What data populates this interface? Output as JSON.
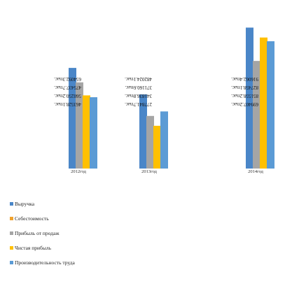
{
  "chart_data": {
    "type": "bar",
    "orientation": "vertical",
    "label_rotation": "rotated 180 degrees",
    "categories": [
      "2012год",
      "2013год",
      "2014год"
    ],
    "series": [
      {
        "name": "Выручка",
        "color": "#4a86c8",
        "values": [
          654092.3,
          482024.1,
          916062.4
        ]
      },
      {
        "name": "Себестоимость",
        "color": "#f0a22e",
        "values": null
      },
      {
        "name": "Прибыль от продаж",
        "color": "#a5a5a5",
        "values": [
          560250.2,
          341836.8,
          699407.2
        ]
      },
      {
        "name": "Чистая прибыль",
        "color": "#ffc000",
        "values": [
          475437.7,
          277841.7,
          851558.2
        ]
      },
      {
        "name": "Производительность труда",
        "color": "#5b9bd5",
        "values": [
          463528.1,
          371160.6,
          827458.1
        ]
      }
    ],
    "visible_labels": [
      [
        "654092.3тыс.",
        "475437.7тыс.",
        "560250.2тыс.",
        "463528.1тыс."
      ],
      [
        "482024.1тыс.",
        "371160.6тыс.",
        "341836.8тыс.",
        "277841.7тыс."
      ],
      [
        "916062.4тыс.",
        "827458.1тыс.",
        "851558.2тыс.",
        "699407.2тыс."
      ]
    ],
    "legend": {
      "position": "bottom-left",
      "items": [
        "Выручка",
        "Себестоимость",
        "Прибыль от продаж",
        "Чистая прибыль",
        "Производительность труда"
      ]
    },
    "grid": false
  }
}
